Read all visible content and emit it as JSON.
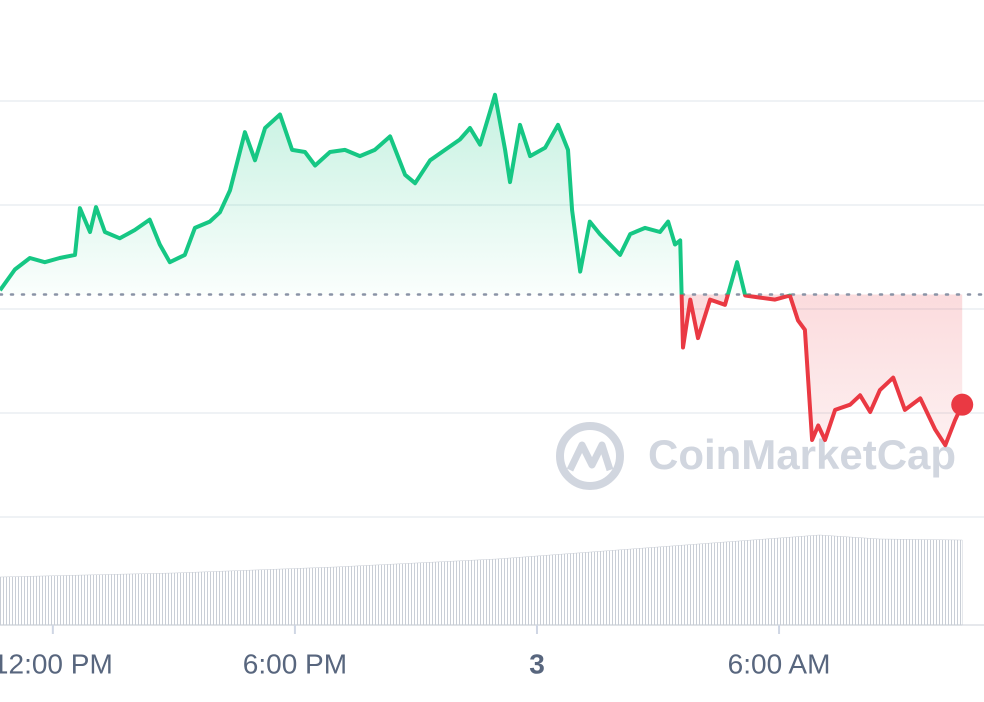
{
  "chart_data": {
    "type": "line",
    "watermark": "CoinMarketCap",
    "x": [
      -1.31,
      -0.94,
      -0.57,
      -0.2,
      0.17,
      0.55,
      0.67,
      0.92,
      1.07,
      1.29,
      1.66,
      2.03,
      2.4,
      2.65,
      2.9,
      3.27,
      3.52,
      3.89,
      4.14,
      4.39,
      4.76,
      5.01,
      5.26,
      5.63,
      5.93,
      6.25,
      6.5,
      6.87,
      7.24,
      7.61,
      7.98,
      8.36,
      8.73,
      8.98,
      9.35,
      9.72,
      10.09,
      10.34,
      10.59,
      10.83,
      10.96,
      11.21,
      11.33,
      11.58,
      11.83,
      12.2,
      12.52,
      12.77,
      12.87,
      13.07,
      13.31,
      13.56,
      13.81,
      14.06,
      14.31,
      14.68,
      15.05,
      15.25,
      15.42,
      15.55,
      15.62,
      15.8,
      15.99,
      16.29,
      16.66,
      16.96,
      17.16,
      17.53,
      17.9,
      18.27,
      18.47,
      18.64,
      18.82,
      18.97,
      19.14,
      19.39,
      19.76,
      20.01,
      20.26,
      20.5,
      20.83,
      21.12,
      21.5,
      21.87,
      22.12,
      22.36,
      22.54
    ],
    "values": [
      2.18,
      2.38,
      2.49,
      2.45,
      2.49,
      2.52,
      2.97,
      2.74,
      2.98,
      2.74,
      2.68,
      2.76,
      2.86,
      2.62,
      2.45,
      2.52,
      2.78,
      2.84,
      2.93,
      3.14,
      3.7,
      3.43,
      3.74,
      3.87,
      3.53,
      3.51,
      3.38,
      3.51,
      3.53,
      3.47,
      3.53,
      3.66,
      3.29,
      3.21,
      3.43,
      3.53,
      3.63,
      3.74,
      3.58,
      3.89,
      4.06,
      3.53,
      3.22,
      3.77,
      3.47,
      3.55,
      3.77,
      3.53,
      2.95,
      2.36,
      2.84,
      2.72,
      2.62,
      2.52,
      2.72,
      2.78,
      2.74,
      2.84,
      2.62,
      2.66,
      1.63,
      2.09,
      1.72,
      2.09,
      2.04,
      2.45,
      2.13,
      2.11,
      2.09,
      2.13,
      1.89,
      1.8,
      0.74,
      0.88,
      0.74,
      1.03,
      1.08,
      1.17,
      1.01,
      1.22,
      1.34,
      1.03,
      1.14,
      0.84,
      0.69,
      0.93,
      1.08
    ],
    "baseline": 2.14,
    "up_color": "#16c784",
    "down_color": "#ea3943",
    "xlim": [
      -1.31,
      23.08
    ],
    "xticks": [
      {
        "value": 0,
        "label": "12:00 PM"
      },
      {
        "value": 6,
        "label": "6:00 PM"
      },
      {
        "value": 12,
        "label": "3",
        "bold": true
      },
      {
        "value": 18,
        "label": "6:00 AM"
      }
    ],
    "ylim": [
      0,
      4.5
    ],
    "yticks": [
      0,
      1,
      2,
      3,
      4
    ],
    "grid": true,
    "volume": {
      "x": [
        -1.31,
        0.8,
        3,
        5,
        7,
        9,
        11,
        13,
        15,
        17,
        19,
        20.5,
        22.54
      ],
      "values": [
        48,
        50,
        52,
        55,
        58,
        62,
        66,
        72,
        78,
        84,
        90,
        86,
        85
      ],
      "ylim": [
        0,
        100
      ],
      "color": "#c9ced6"
    }
  }
}
